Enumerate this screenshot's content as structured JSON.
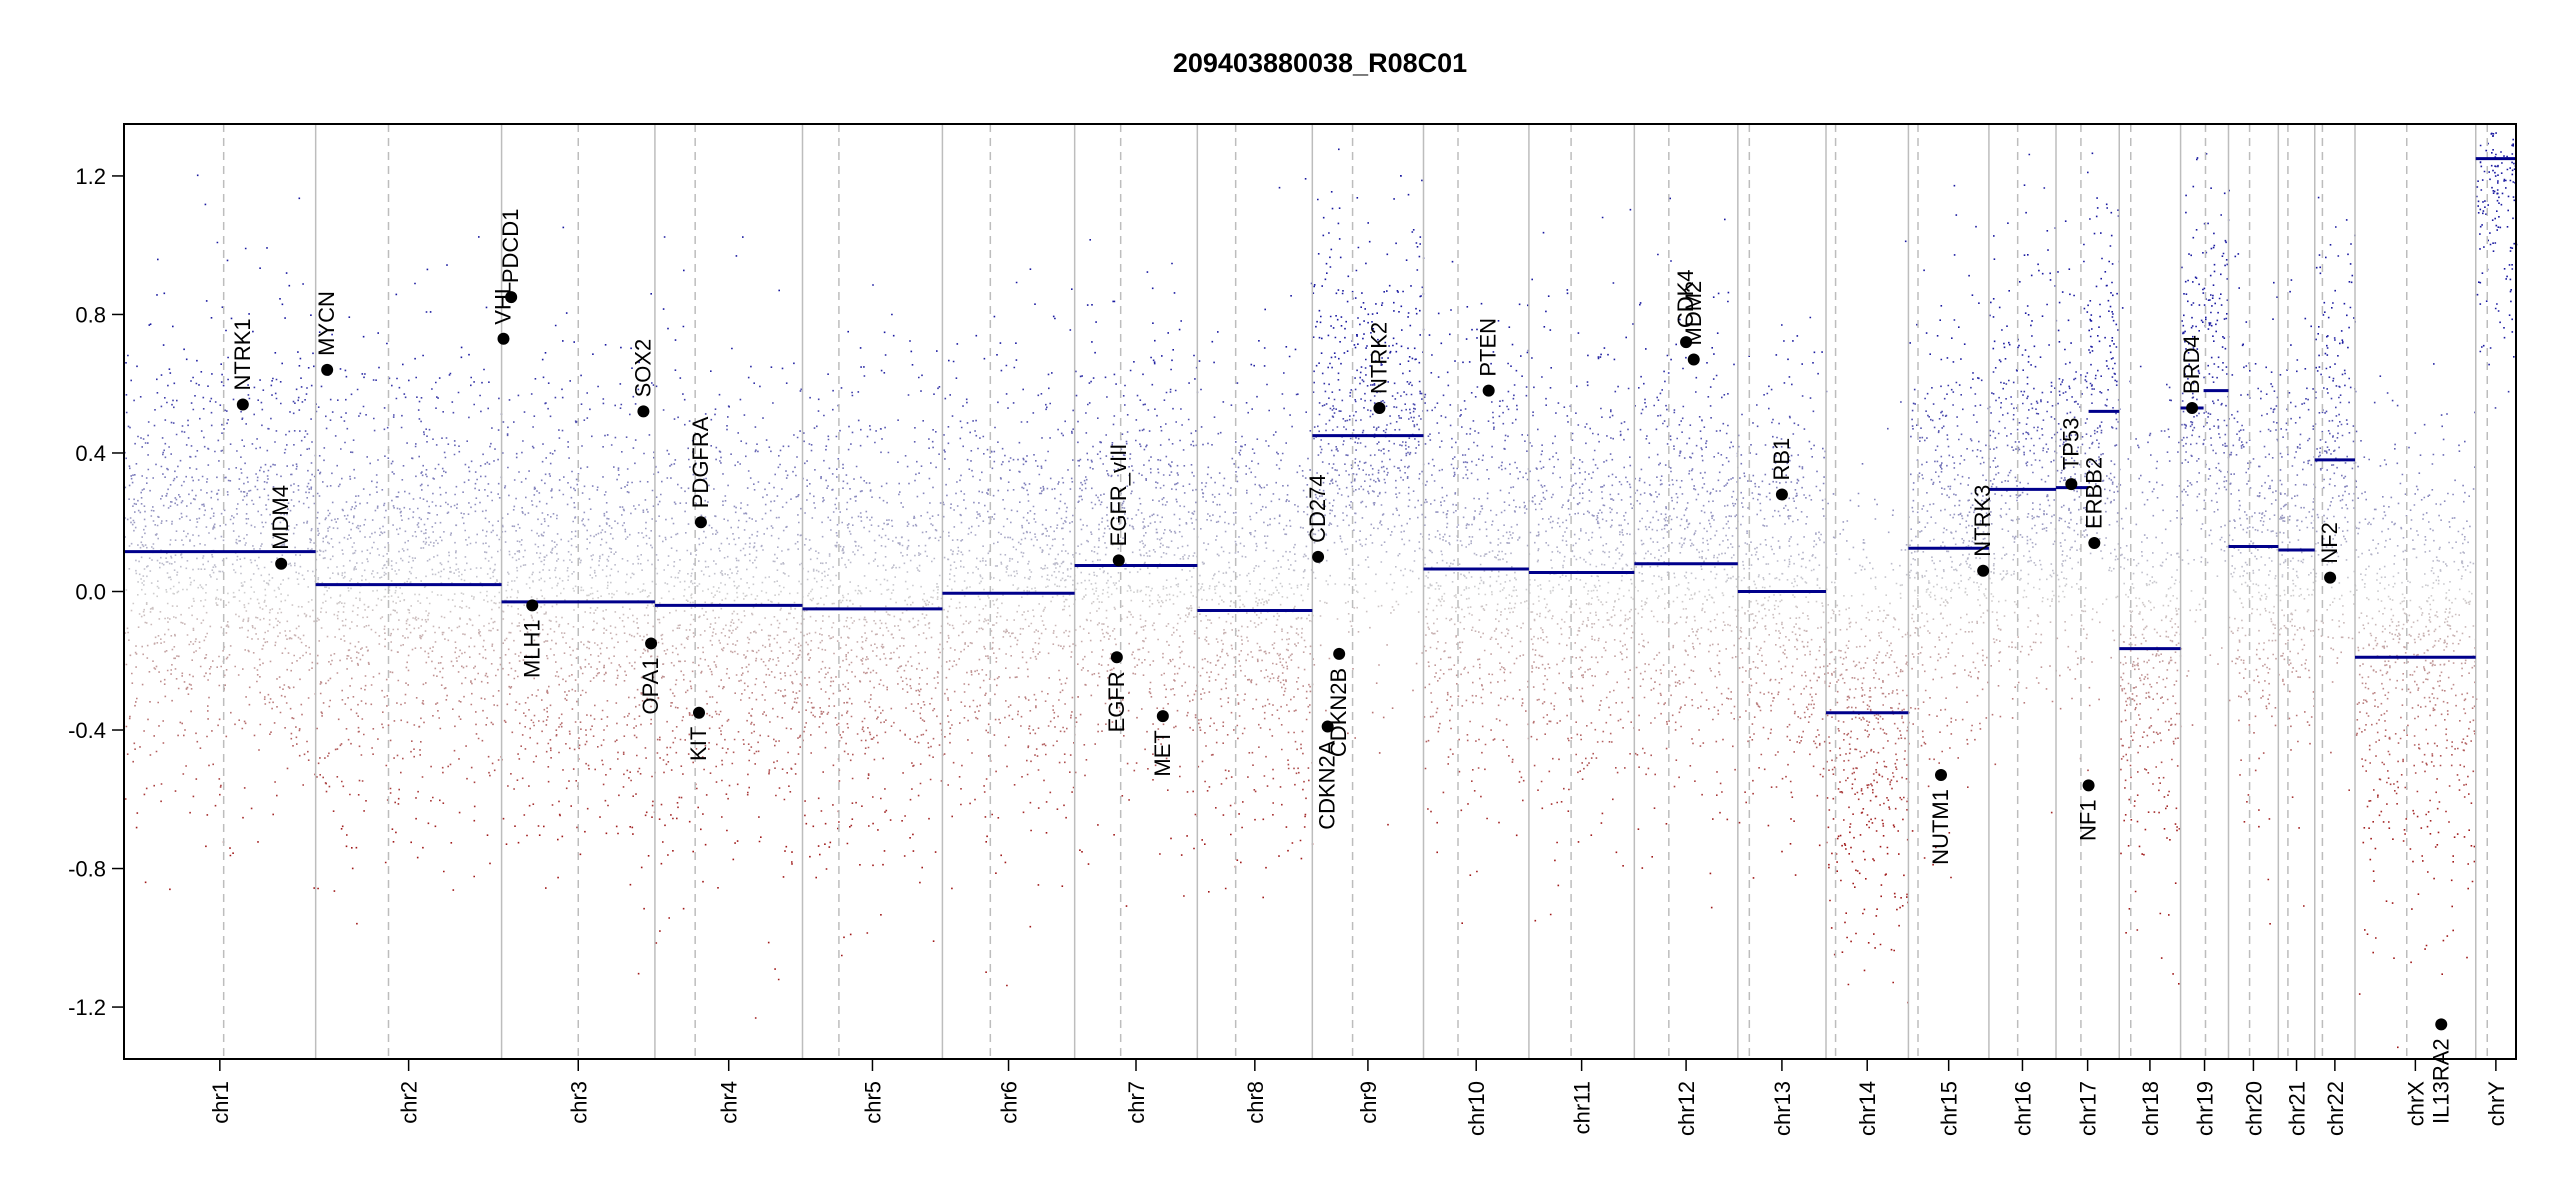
{
  "chart_data": {
    "type": "scatter",
    "title": "209403880038_R08C01",
    "ylim": [
      -1.35,
      1.35
    ],
    "yticks": [
      -1.2,
      -0.8,
      -0.4,
      0.0,
      0.4,
      0.8,
      1.2
    ],
    "ytick_labels": [
      "-1.2",
      "-0.8",
      "-0.4",
      "0.0",
      "0.4",
      "0.8",
      "1.2"
    ],
    "colors": {
      "gain": "#1a1aa0",
      "neutral": "#c8c8c8",
      "loss": "#a01a1a",
      "segment": "#00008b",
      "separator": "#bdbdbd",
      "gene_point": "#000000"
    },
    "chromosomes": [
      {
        "label": "chr1",
        "start": 0.0,
        "end": 10.0,
        "centromere": 5.2
      },
      {
        "label": "chr2",
        "start": 10.0,
        "end": 19.7,
        "centromere": 13.8
      },
      {
        "label": "chr3",
        "start": 19.7,
        "end": 27.7,
        "centromere": 23.7
      },
      {
        "label": "chr4",
        "start": 27.7,
        "end": 35.4,
        "centromere": 29.8
      },
      {
        "label": "chr5",
        "start": 35.4,
        "end": 42.7,
        "centromere": 37.3
      },
      {
        "label": "chr6",
        "start": 42.7,
        "end": 49.6,
        "centromere": 45.2
      },
      {
        "label": "chr7",
        "start": 49.6,
        "end": 56.0,
        "centromere": 52.0
      },
      {
        "label": "chr8",
        "start": 56.0,
        "end": 62.0,
        "centromere": 58.0
      },
      {
        "label": "chr9",
        "start": 62.0,
        "end": 67.8,
        "centromere": 64.1
      },
      {
        "label": "chr10",
        "start": 67.8,
        "end": 73.3,
        "centromere": 69.6
      },
      {
        "label": "chr11",
        "start": 73.3,
        "end": 78.8,
        "centromere": 75.5
      },
      {
        "label": "chr12",
        "start": 78.8,
        "end": 84.2,
        "centromere": 80.6
      },
      {
        "label": "chr13",
        "start": 84.2,
        "end": 88.8,
        "centromere": 84.8
      },
      {
        "label": "chr14",
        "start": 88.8,
        "end": 93.1,
        "centromere": 89.3
      },
      {
        "label": "chr15",
        "start": 93.1,
        "end": 97.3,
        "centromere": 93.6
      },
      {
        "label": "chr16",
        "start": 97.3,
        "end": 100.8,
        "centromere": 98.8
      },
      {
        "label": "chr17",
        "start": 100.8,
        "end": 104.1,
        "centromere": 102.1
      },
      {
        "label": "chr18",
        "start": 104.1,
        "end": 107.3,
        "centromere": 104.7
      },
      {
        "label": "chr19",
        "start": 107.3,
        "end": 109.8,
        "centromere": 108.6
      },
      {
        "label": "chr20",
        "start": 109.8,
        "end": 112.4,
        "centromere": 110.9
      },
      {
        "label": "chr21",
        "start": 112.4,
        "end": 114.3,
        "centromere": 112.9
      },
      {
        "label": "chr22",
        "start": 114.3,
        "end": 116.4,
        "centromere": 114.7
      },
      {
        "label": "chrX",
        "start": 116.4,
        "end": 122.7,
        "centromere": 119.1
      },
      {
        "label": "chrY",
        "start": 122.7,
        "end": 124.8,
        "centromere": 123.3
      }
    ],
    "segments": [
      {
        "chr": "chr1",
        "x0": 0.0,
        "x1": 10.0,
        "y": 0.115
      },
      {
        "chr": "chr2",
        "x0": 10.0,
        "x1": 19.7,
        "y": 0.02
      },
      {
        "chr": "chr3",
        "x0": 19.7,
        "x1": 27.7,
        "y": -0.03
      },
      {
        "chr": "chr4",
        "x0": 27.7,
        "x1": 35.4,
        "y": -0.04
      },
      {
        "chr": "chr5",
        "x0": 35.4,
        "x1": 42.7,
        "y": -0.05
      },
      {
        "chr": "chr6",
        "x0": 42.7,
        "x1": 49.6,
        "y": -0.005
      },
      {
        "chr": "chr7",
        "x0": 49.6,
        "x1": 56.0,
        "y": 0.075
      },
      {
        "chr": "chr8",
        "x0": 56.0,
        "x1": 62.0,
        "y": -0.055
      },
      {
        "chr": "chr9",
        "x0": 62.0,
        "x1": 67.8,
        "y": 0.45
      },
      {
        "chr": "chr10",
        "x0": 67.8,
        "x1": 73.3,
        "y": 0.065
      },
      {
        "chr": "chr11",
        "x0": 73.3,
        "x1": 78.8,
        "y": 0.055
      },
      {
        "chr": "chr12",
        "x0": 78.8,
        "x1": 84.2,
        "y": 0.08
      },
      {
        "chr": "chr13",
        "x0": 84.2,
        "x1": 88.8,
        "y": 0.0
      },
      {
        "chr": "chr14",
        "x0": 88.8,
        "x1": 93.1,
        "y": -0.35
      },
      {
        "chr": "chr15",
        "x0": 93.1,
        "x1": 97.3,
        "y": 0.125
      },
      {
        "chr": "chr16",
        "x0": 97.3,
        "x1": 100.8,
        "y": 0.295
      },
      {
        "chr": "chr17",
        "x0": 100.8,
        "x1": 102.5,
        "y": 0.3
      },
      {
        "chr": "chr17",
        "x0": 102.5,
        "x1": 104.1,
        "y": 0.52
      },
      {
        "chr": "chr18",
        "x0": 104.1,
        "x1": 107.3,
        "y": -0.165
      },
      {
        "chr": "chr19",
        "x0": 107.3,
        "x1": 108.5,
        "y": 0.53
      },
      {
        "chr": "chr19",
        "x0": 108.5,
        "x1": 109.8,
        "y": 0.58
      },
      {
        "chr": "chr20",
        "x0": 109.8,
        "x1": 112.4,
        "y": 0.13
      },
      {
        "chr": "chr21",
        "x0": 112.4,
        "x1": 114.3,
        "y": 0.12
      },
      {
        "chr": "chr22",
        "x0": 114.3,
        "x1": 116.4,
        "y": 0.38
      },
      {
        "chr": "chrX",
        "x0": 116.4,
        "x1": 122.7,
        "y": -0.19
      },
      {
        "chr": "chrY",
        "x0": 122.7,
        "x1": 124.8,
        "y": 1.25
      }
    ],
    "genes": [
      {
        "label": "NTRK1",
        "x": 6.2,
        "y": 0.54
      },
      {
        "label": "MDM4",
        "x": 8.2,
        "y": 0.08
      },
      {
        "label": "MYCN",
        "x": 10.6,
        "y": 0.64
      },
      {
        "label": "VHL",
        "x": 19.8,
        "y": 0.73
      },
      {
        "label": "PDCD1",
        "x": 20.2,
        "y": 0.85
      },
      {
        "label": "MLH1",
        "x": 21.3,
        "y": -0.04
      },
      {
        "label": "SOX2",
        "x": 27.1,
        "y": 0.52
      },
      {
        "label": "OPA1",
        "x": 27.5,
        "y": -0.15
      },
      {
        "label": "PDGFRA",
        "x": 30.1,
        "y": 0.2
      },
      {
        "label": "KIT",
        "x": 30.0,
        "y": -0.35
      },
      {
        "label": "EGFR_vIII",
        "x": 51.9,
        "y": 0.09
      },
      {
        "label": "EGFR",
        "x": 51.8,
        "y": -0.19
      },
      {
        "label": "MET",
        "x": 54.2,
        "y": -0.36
      },
      {
        "label": "CD274",
        "x": 62.3,
        "y": 0.1
      },
      {
        "label": "CDKN2A",
        "x": 62.8,
        "y": -0.39
      },
      {
        "label": "CDKN2B",
        "x": 63.4,
        "y": -0.18
      },
      {
        "label": "NTRK2",
        "x": 65.5,
        "y": 0.53
      },
      {
        "label": "PTEN",
        "x": 71.2,
        "y": 0.58
      },
      {
        "label": "CDK4",
        "x": 81.5,
        "y": 0.72
      },
      {
        "label": "MDM2",
        "x": 81.9,
        "y": 0.67
      },
      {
        "label": "RB1",
        "x": 86.5,
        "y": 0.28
      },
      {
        "label": "NUTM1",
        "x": 94.8,
        "y": -0.53
      },
      {
        "label": "NTRK3",
        "x": 97.0,
        "y": 0.06
      },
      {
        "label": "TP53",
        "x": 101.6,
        "y": 0.31
      },
      {
        "label": "NF1",
        "x": 102.5,
        "y": -0.56
      },
      {
        "label": "ERBB2",
        "x": 102.8,
        "y": 0.14
      },
      {
        "label": "BRD4",
        "x": 107.9,
        "y": 0.53
      },
      {
        "label": "NF2",
        "x": 115.1,
        "y": 0.04
      },
      {
        "label": "IL13RA2",
        "x": 120.9,
        "y": -1.25
      }
    ]
  }
}
